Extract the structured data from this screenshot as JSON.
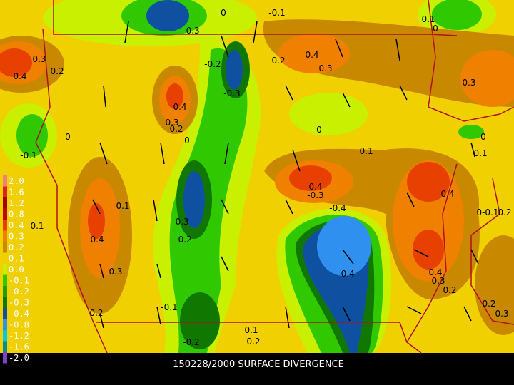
{
  "caption": "150228/2000 SURFACE DIVERGENCE",
  "legend": [
    {
      "label": "2.0",
      "color": "#f08080"
    },
    {
      "label": "1.6",
      "color": "#e02020"
    },
    {
      "label": "1.2",
      "color": "#a00000"
    },
    {
      "label": "0.8",
      "color": "#c80000"
    },
    {
      "label": "0.4",
      "color": "#e84000"
    },
    {
      "label": "0.3",
      "color": "#f08000"
    },
    {
      "label": "0.2",
      "color": "#c88800"
    },
    {
      "label": "0.1",
      "color": "#f0d000"
    },
    {
      "label": "0.0",
      "color": "#c8f000"
    },
    {
      "label": "-0.1",
      "color": "#30c800"
    },
    {
      "label": "-0.2",
      "color": "#20a000"
    },
    {
      "label": "-0.3",
      "color": "#107800"
    },
    {
      "label": "-0.4",
      "color": "#1050a0"
    },
    {
      "label": "-0.8",
      "color": "#3090f0"
    },
    {
      "label": "-1.2",
      "color": "#00c8e8"
    },
    {
      "label": "-1.6",
      "color": "#009090"
    },
    {
      "label": "-2.0",
      "color": "#8040c0"
    }
  ],
  "contour_labels": [
    "0.3",
    "0.4",
    "0.2",
    "-0.3",
    "0",
    "-0.1",
    "0.1",
    "0",
    "0.2",
    "0.4",
    "0.3",
    "-0.2",
    "-0.3",
    "0.4",
    "0.3",
    "0.2",
    "0",
    "0.3",
    "0",
    "-0.1",
    "0",
    "0.1",
    "0.1",
    "0",
    "0.4",
    "-0.3",
    "0.4",
    "-0.4",
    "0.1",
    "-0.3",
    "-0.2",
    "0.4",
    "0.3",
    "0.1",
    "-0.4",
    "0.4",
    "0.3",
    "0.2",
    "0.2",
    "0.3",
    "-0.1",
    "-0.2",
    "0.1",
    "0.2",
    "0.2",
    "0-0.1",
    "0.2"
  ]
}
